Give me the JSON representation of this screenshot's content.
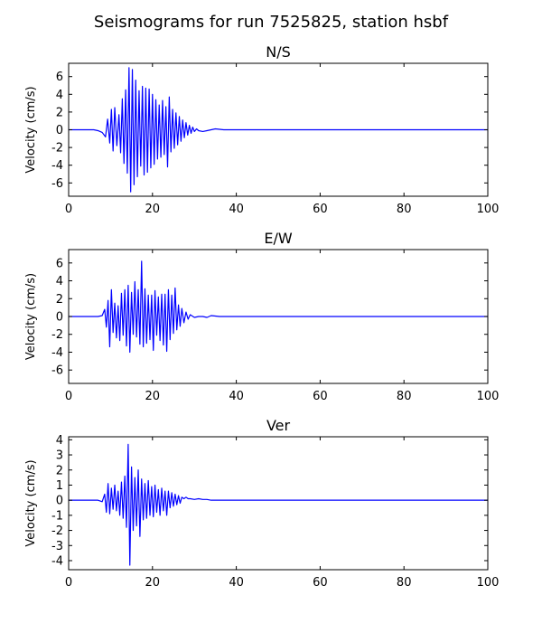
{
  "figure": {
    "title": "Seismograms for run 7525825, station hsbf"
  },
  "chart_data": [
    {
      "type": "line",
      "title": "N/S",
      "xlabel": "",
      "ylabel": "Velocity (cm/s)",
      "xlim": [
        0,
        100
      ],
      "ylim": [
        -7.5,
        7.5
      ],
      "x_ticks": [
        0,
        20,
        40,
        60,
        80,
        100
      ],
      "y_ticks": [
        6,
        4,
        2,
        0,
        -2,
        -4,
        -6
      ],
      "line_color": "#0000ff",
      "grid": false,
      "series": [
        {
          "x": [
            0,
            5,
            6,
            7,
            8,
            8.8,
            9.3,
            9.8,
            10.2,
            10.6,
            11,
            11.5,
            12,
            12.4,
            12.8,
            13.2,
            13.6,
            14,
            14.4,
            14.8,
            15.2,
            15.6,
            16,
            16.4,
            16.8,
            17.2,
            17.6,
            18,
            18.4,
            18.8,
            19.2,
            19.6,
            20,
            20.4,
            20.8,
            21.2,
            21.6,
            22,
            22.4,
            22.8,
            23.2,
            23.6,
            24,
            24.4,
            24.8,
            25.2,
            25.6,
            26,
            26.4,
            26.8,
            27.2,
            27.6,
            28,
            28.4,
            28.8,
            29.2,
            29.6,
            30,
            30.5,
            31,
            32,
            33,
            34,
            35,
            36,
            37,
            38,
            40,
            45,
            50,
            60,
            70,
            80,
            90,
            100
          ],
          "y": [
            0,
            0,
            0,
            -0.1,
            -0.3,
            -0.8,
            1.2,
            -1.5,
            2.3,
            -2.4,
            2.5,
            -1.8,
            1.7,
            -2.6,
            3.5,
            -3.8,
            4.5,
            -4.9,
            7.0,
            -7.0,
            6.8,
            -6.2,
            5.6,
            -5.3,
            4.4,
            -4.1,
            4.9,
            -5.1,
            4.7,
            -4.8,
            4.6,
            -4.3,
            4.0,
            -3.9,
            3.4,
            -3.3,
            2.8,
            -3.1,
            3.3,
            -2.8,
            2.6,
            -4.2,
            3.7,
            -2.5,
            2.3,
            -2.1,
            1.9,
            -1.7,
            1.5,
            -1.3,
            1.1,
            -0.9,
            0.8,
            -0.6,
            0.5,
            -0.4,
            0.3,
            -0.2,
            0.1,
            -0.1,
            -0.2,
            -0.1,
            0,
            0.1,
            0.05,
            0,
            0,
            0,
            0,
            0,
            0,
            0,
            0,
            0,
            0
          ]
        }
      ]
    },
    {
      "type": "line",
      "title": "E/W",
      "xlabel": "",
      "ylabel": "Velocity (cm/s)",
      "xlim": [
        0,
        100
      ],
      "ylim": [
        -7.5,
        7.5
      ],
      "x_ticks": [
        0,
        20,
        40,
        60,
        80,
        100
      ],
      "y_ticks": [
        6,
        4,
        2,
        0,
        -2,
        -4,
        -6
      ],
      "line_color": "#0000ff",
      "grid": false,
      "series": [
        {
          "x": [
            0,
            5,
            6,
            7,
            8,
            8.6,
            9,
            9.4,
            9.8,
            10.2,
            10.6,
            11,
            11.4,
            11.8,
            12.2,
            12.6,
            13,
            13.4,
            13.8,
            14.2,
            14.6,
            15,
            15.4,
            15.8,
            16.2,
            16.6,
            17,
            17.4,
            17.8,
            18.2,
            18.6,
            19,
            19.4,
            19.8,
            20.2,
            20.6,
            21,
            21.4,
            21.8,
            22.2,
            22.6,
            23,
            23.4,
            23.8,
            24.2,
            24.6,
            25,
            25.4,
            25.8,
            26.2,
            26.6,
            27,
            27.5,
            28,
            28.5,
            29,
            30,
            31,
            32,
            33,
            34,
            35,
            36,
            38,
            40,
            50,
            60,
            70,
            80,
            90,
            100
          ],
          "y": [
            0,
            0,
            0,
            0,
            0.1,
            0.8,
            -1.2,
            1.8,
            -3.4,
            3.0,
            -1.8,
            1.5,
            -2.4,
            1.2,
            -2.7,
            2.6,
            -2.1,
            3.0,
            -3.3,
            3.5,
            -4.0,
            2.7,
            -2.0,
            3.9,
            -2.3,
            3.0,
            -3.1,
            6.2,
            -3.4,
            3.1,
            -3.0,
            2.4,
            -2.6,
            2.4,
            -3.8,
            2.9,
            -2.1,
            2.2,
            -2.7,
            2.5,
            -3.2,
            2.5,
            -3.9,
            3.0,
            -2.6,
            2.4,
            -1.9,
            3.2,
            -1.5,
            1.3,
            -1.1,
            0.9,
            -0.7,
            0.5,
            -0.3,
            0.2,
            -0.1,
            0,
            0,
            -0.1,
            0.1,
            0.05,
            0,
            0,
            0,
            0,
            0,
            0,
            0,
            0,
            0
          ]
        }
      ]
    },
    {
      "type": "line",
      "title": "Ver",
      "xlabel": "",
      "ylabel": "Velocity (cm/s)",
      "xlim": [
        0,
        100
      ],
      "ylim": [
        -4.6,
        4.2
      ],
      "x_ticks": [
        0,
        20,
        40,
        60,
        80,
        100
      ],
      "y_ticks": [
        4,
        3,
        2,
        1,
        0,
        -1,
        -2,
        -3,
        -4
      ],
      "line_color": "#0000ff",
      "grid": false,
      "series": [
        {
          "x": [
            0,
            5,
            6,
            7,
            8,
            8.6,
            9,
            9.4,
            9.8,
            10.2,
            10.6,
            11,
            11.4,
            11.8,
            12.2,
            12.6,
            13,
            13.4,
            13.8,
            14.2,
            14.6,
            15,
            15.4,
            15.8,
            16.2,
            16.6,
            17,
            17.4,
            17.8,
            18.2,
            18.6,
            19,
            19.4,
            19.8,
            20.2,
            20.6,
            21,
            21.4,
            21.8,
            22.2,
            22.6,
            23,
            23.4,
            23.8,
            24.2,
            24.6,
            25,
            25.4,
            25.8,
            26.2,
            26.6,
            27,
            27.5,
            28,
            28.5,
            29,
            30,
            31,
            32,
            33,
            34,
            35,
            36,
            38,
            40,
            50,
            60,
            70,
            80,
            90,
            100
          ],
          "y": [
            0,
            0,
            0,
            0,
            -0.1,
            0.4,
            -0.8,
            1.1,
            -0.9,
            0.8,
            -0.6,
            1.0,
            -0.7,
            0.6,
            -1.0,
            1.2,
            -1.2,
            1.6,
            -1.8,
            3.7,
            -4.3,
            2.2,
            -2.0,
            1.5,
            -1.7,
            2.0,
            -2.4,
            1.4,
            -1.3,
            1.1,
            -1.2,
            1.3,
            -1.0,
            0.9,
            -1.1,
            1.0,
            -0.8,
            0.7,
            -1.0,
            0.8,
            -0.7,
            0.6,
            -1.0,
            0.6,
            -0.5,
            0.5,
            -0.4,
            0.4,
            -0.3,
            0.3,
            -0.2,
            0.2,
            0.1,
            0.2,
            0.1,
            0.1,
            0.05,
            0.1,
            0.05,
            0.05,
            0,
            0,
            0,
            0,
            0,
            0,
            0,
            0,
            0,
            0,
            0
          ]
        }
      ]
    }
  ]
}
